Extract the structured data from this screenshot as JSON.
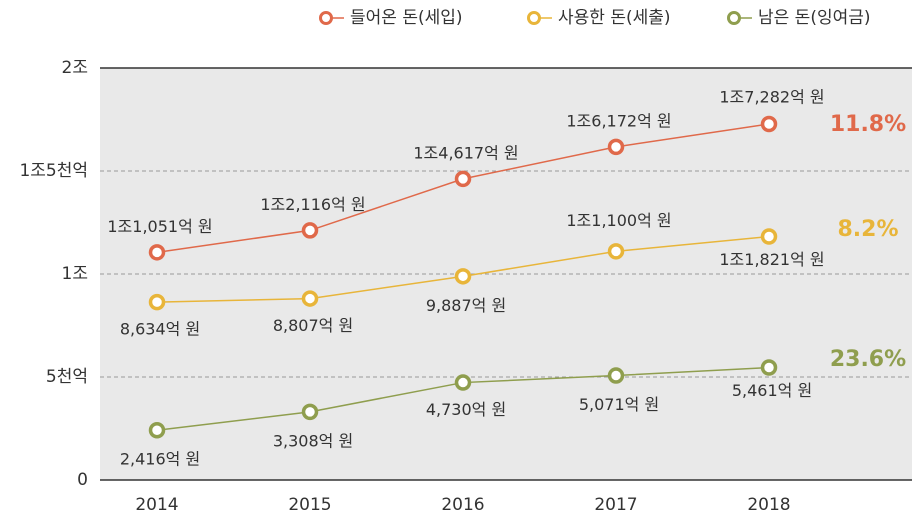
{
  "chart_data": {
    "type": "line",
    "categories": [
      "2014",
      "2015",
      "2016",
      "2017",
      "2018"
    ],
    "series": [
      {
        "name": "들어온 돈(세입)",
        "color": "#e0694a",
        "values": [
          11051,
          12116,
          14617,
          16172,
          17282
        ],
        "value_labels": [
          "1조1,051억 원",
          "1조2,116억 원",
          "1조4,617억 원",
          "1조6,172억 원",
          "1조7,282억 원"
        ]
      },
      {
        "name": "사용한 돈(세출)",
        "color": "#e8b53a",
        "values": [
          8634,
          8807,
          9887,
          11100,
          11821
        ],
        "value_labels": [
          "8,634억 원",
          "8,807억 원",
          "9,887억 원",
          "1조1,100억 원",
          "1조1,821억 원"
        ]
      },
      {
        "name": "남은 돈(잉여금)",
        "color": "#8f9e4e",
        "values": [
          2416,
          3308,
          4730,
          5071,
          5461
        ],
        "value_labels": [
          "2,416억 원",
          "3,308억 원",
          "4,730억 원",
          "5,071억 원",
          "5,461억 원"
        ]
      }
    ],
    "annotations": [
      "11.8%",
      "8.2%",
      "23.6%"
    ],
    "ylim": [
      0,
      20000
    ],
    "yticks": [
      0,
      {
        "value": 5000,
        "label": "5천억"
      },
      {
        "value": 10000,
        "label": "1조"
      },
      {
        "value": 15000,
        "label": "1조5천억"
      },
      {
        "value": 20000,
        "label": "2조"
      }
    ],
    "grid": true
  }
}
